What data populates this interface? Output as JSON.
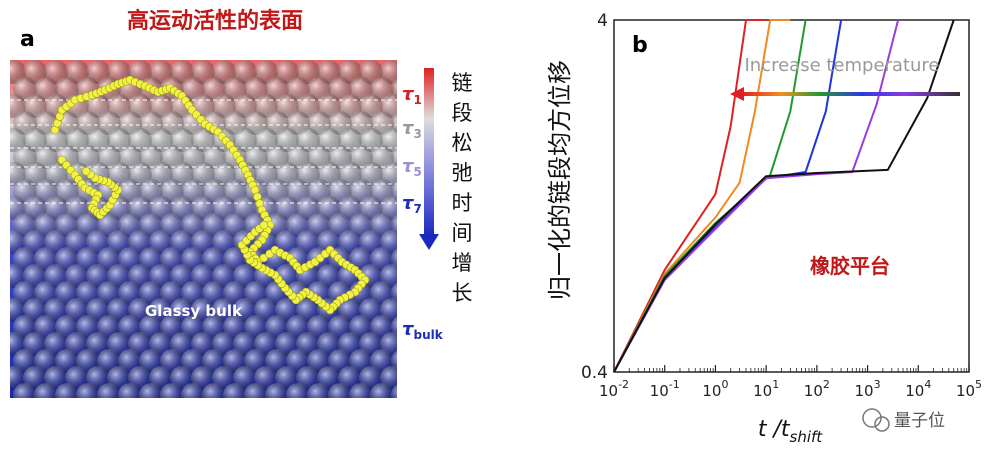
{
  "panel_a": {
    "label": "a",
    "title": "高运动活性的表面",
    "bulk_label": "Glassy bulk",
    "tau_labels": [
      {
        "sym": "τ",
        "sub": "1",
        "color": "#d42020"
      },
      {
        "sym": "τ",
        "sub": "3",
        "color": "#9a9a9a"
      },
      {
        "sym": "τ",
        "sub": "5",
        "color": "#9c8fd8"
      },
      {
        "sym": "τ",
        "sub": "7",
        "color": "#1d2fb8"
      },
      {
        "sym": "τ",
        "sub": "bulk",
        "color": "#1d2fb8"
      }
    ],
    "arrow_chars": [
      "链",
      "段",
      "松",
      "弛",
      "时",
      "间",
      "增",
      "长"
    ],
    "colors": {
      "surface": "#e05a5a",
      "bulk": "#1f2fc4",
      "chain": "#ecec3a"
    }
  },
  "chart_data": {
    "type": "line",
    "panel_label": "b",
    "ylabel": "归一化的链段均方位移",
    "xlabel": "t /t",
    "xlabel_sub": "shift",
    "x_scale": "log",
    "y_scale": "log",
    "xlim": [
      0.01,
      100000
    ],
    "ylim": [
      0.4,
      4
    ],
    "y_ticks": [
      "0.4",
      "4"
    ],
    "x_ticks": [
      {
        "base": "10",
        "exp": "-2"
      },
      {
        "base": "10",
        "exp": "-1"
      },
      {
        "base": "10",
        "exp": "0"
      },
      {
        "base": "10",
        "exp": "1"
      },
      {
        "base": "10",
        "exp": "2"
      },
      {
        "base": "10",
        "exp": "3"
      },
      {
        "base": "10",
        "exp": "4"
      },
      {
        "base": "10",
        "exp": "5"
      }
    ],
    "annotation_temperature": "Increase temperature",
    "annotation_plateau": "橡胶平台",
    "series": [
      {
        "color": "#e02020",
        "x": [
          0.01,
          0.1,
          1,
          2,
          4,
          10
        ],
        "y": [
          0.4,
          0.78,
          1.28,
          2.0,
          4.0,
          4.0
        ]
      },
      {
        "color": "#f08a20",
        "x": [
          0.01,
          0.1,
          1,
          3,
          6,
          12,
          30
        ],
        "y": [
          0.4,
          0.76,
          1.1,
          1.38,
          2.2,
          4.0,
          4.0
        ]
      },
      {
        "color": "#1f9a2a",
        "x": [
          0.01,
          0.1,
          1,
          12,
          30,
          60
        ],
        "y": [
          0.4,
          0.75,
          1.06,
          1.45,
          2.2,
          4.0
        ]
      },
      {
        "color": "#1f33e0",
        "x": [
          0.01,
          0.1,
          1,
          10,
          60,
          150,
          300
        ],
        "y": [
          0.4,
          0.74,
          1.03,
          1.42,
          1.48,
          2.2,
          4.0
        ]
      },
      {
        "color": "#9a3ae0",
        "x": [
          0.01,
          0.1,
          1,
          10,
          100,
          500,
          1500,
          4000
        ],
        "y": [
          0.4,
          0.73,
          1.02,
          1.42,
          1.46,
          1.48,
          2.3,
          4.0
        ]
      },
      {
        "color": "#111111",
        "x": [
          0.01,
          0.1,
          1,
          10,
          100,
          2500,
          15000,
          50000
        ],
        "y": [
          0.4,
          0.74,
          1.05,
          1.44,
          1.47,
          1.5,
          2.4,
          4.0
        ]
      }
    ],
    "grid": false
  },
  "watermark": "量子位"
}
